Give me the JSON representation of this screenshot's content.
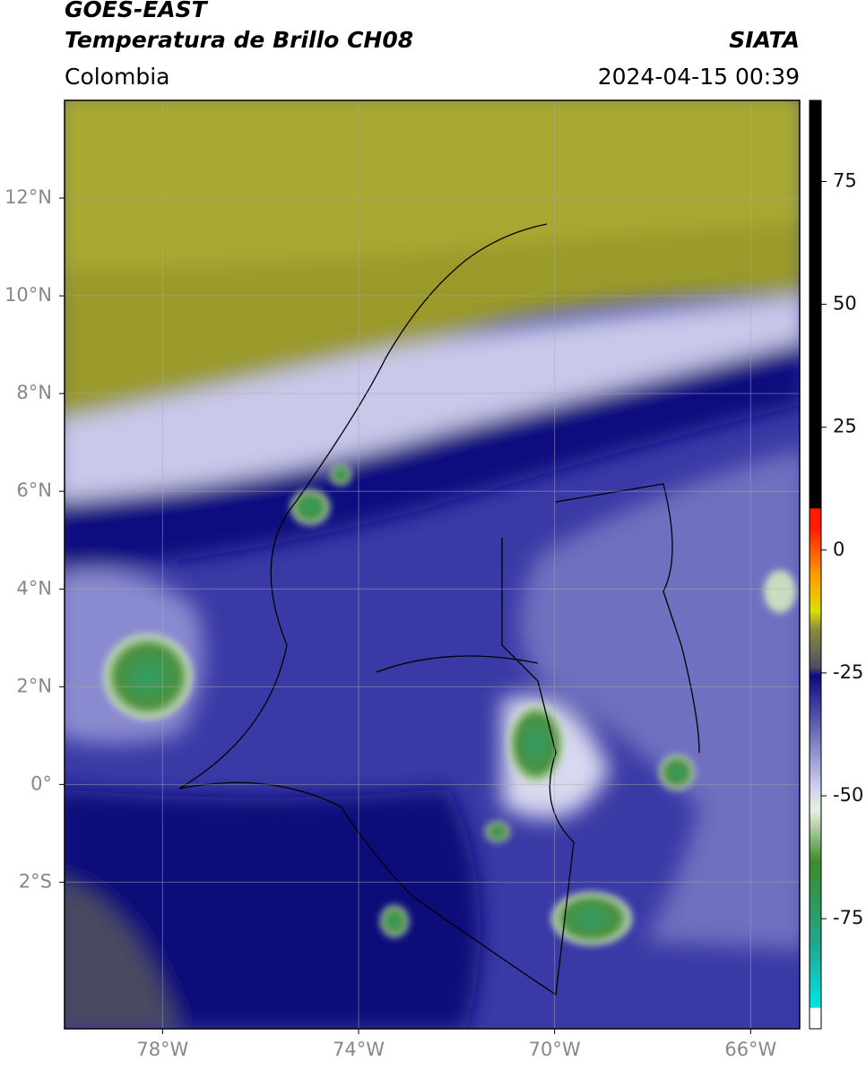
{
  "header": {
    "title": "GOES-EAST",
    "subtitle": "Temperatura de Brillo CH08",
    "source": "SIATA",
    "region": "Colombia",
    "datetime": "2024-04-15 00:39"
  },
  "map": {
    "xlim": [
      -80,
      -65
    ],
    "ylim": [
      -5,
      14
    ],
    "xticks": [
      {
        "value": -78,
        "label": "78°W"
      },
      {
        "value": -74,
        "label": "74°W"
      },
      {
        "value": -70,
        "label": "70°W"
      },
      {
        "value": -66,
        "label": "66°W"
      }
    ],
    "yticks": [
      {
        "value": 12,
        "label": "12°N"
      },
      {
        "value": 10,
        "label": "10°N"
      },
      {
        "value": 8,
        "label": "8°N"
      },
      {
        "value": 6,
        "label": "6°N"
      },
      {
        "value": 4,
        "label": "4°N"
      },
      {
        "value": 2,
        "label": "2°N"
      },
      {
        "value": 0,
        "label": "0°"
      },
      {
        "value": -2,
        "label": "2°S"
      }
    ],
    "grid": true
  },
  "colorbar": {
    "lim": [
      -97.4,
      91.5
    ],
    "ticks": [
      75,
      50,
      25,
      0,
      -25,
      -50,
      -75
    ]
  }
}
